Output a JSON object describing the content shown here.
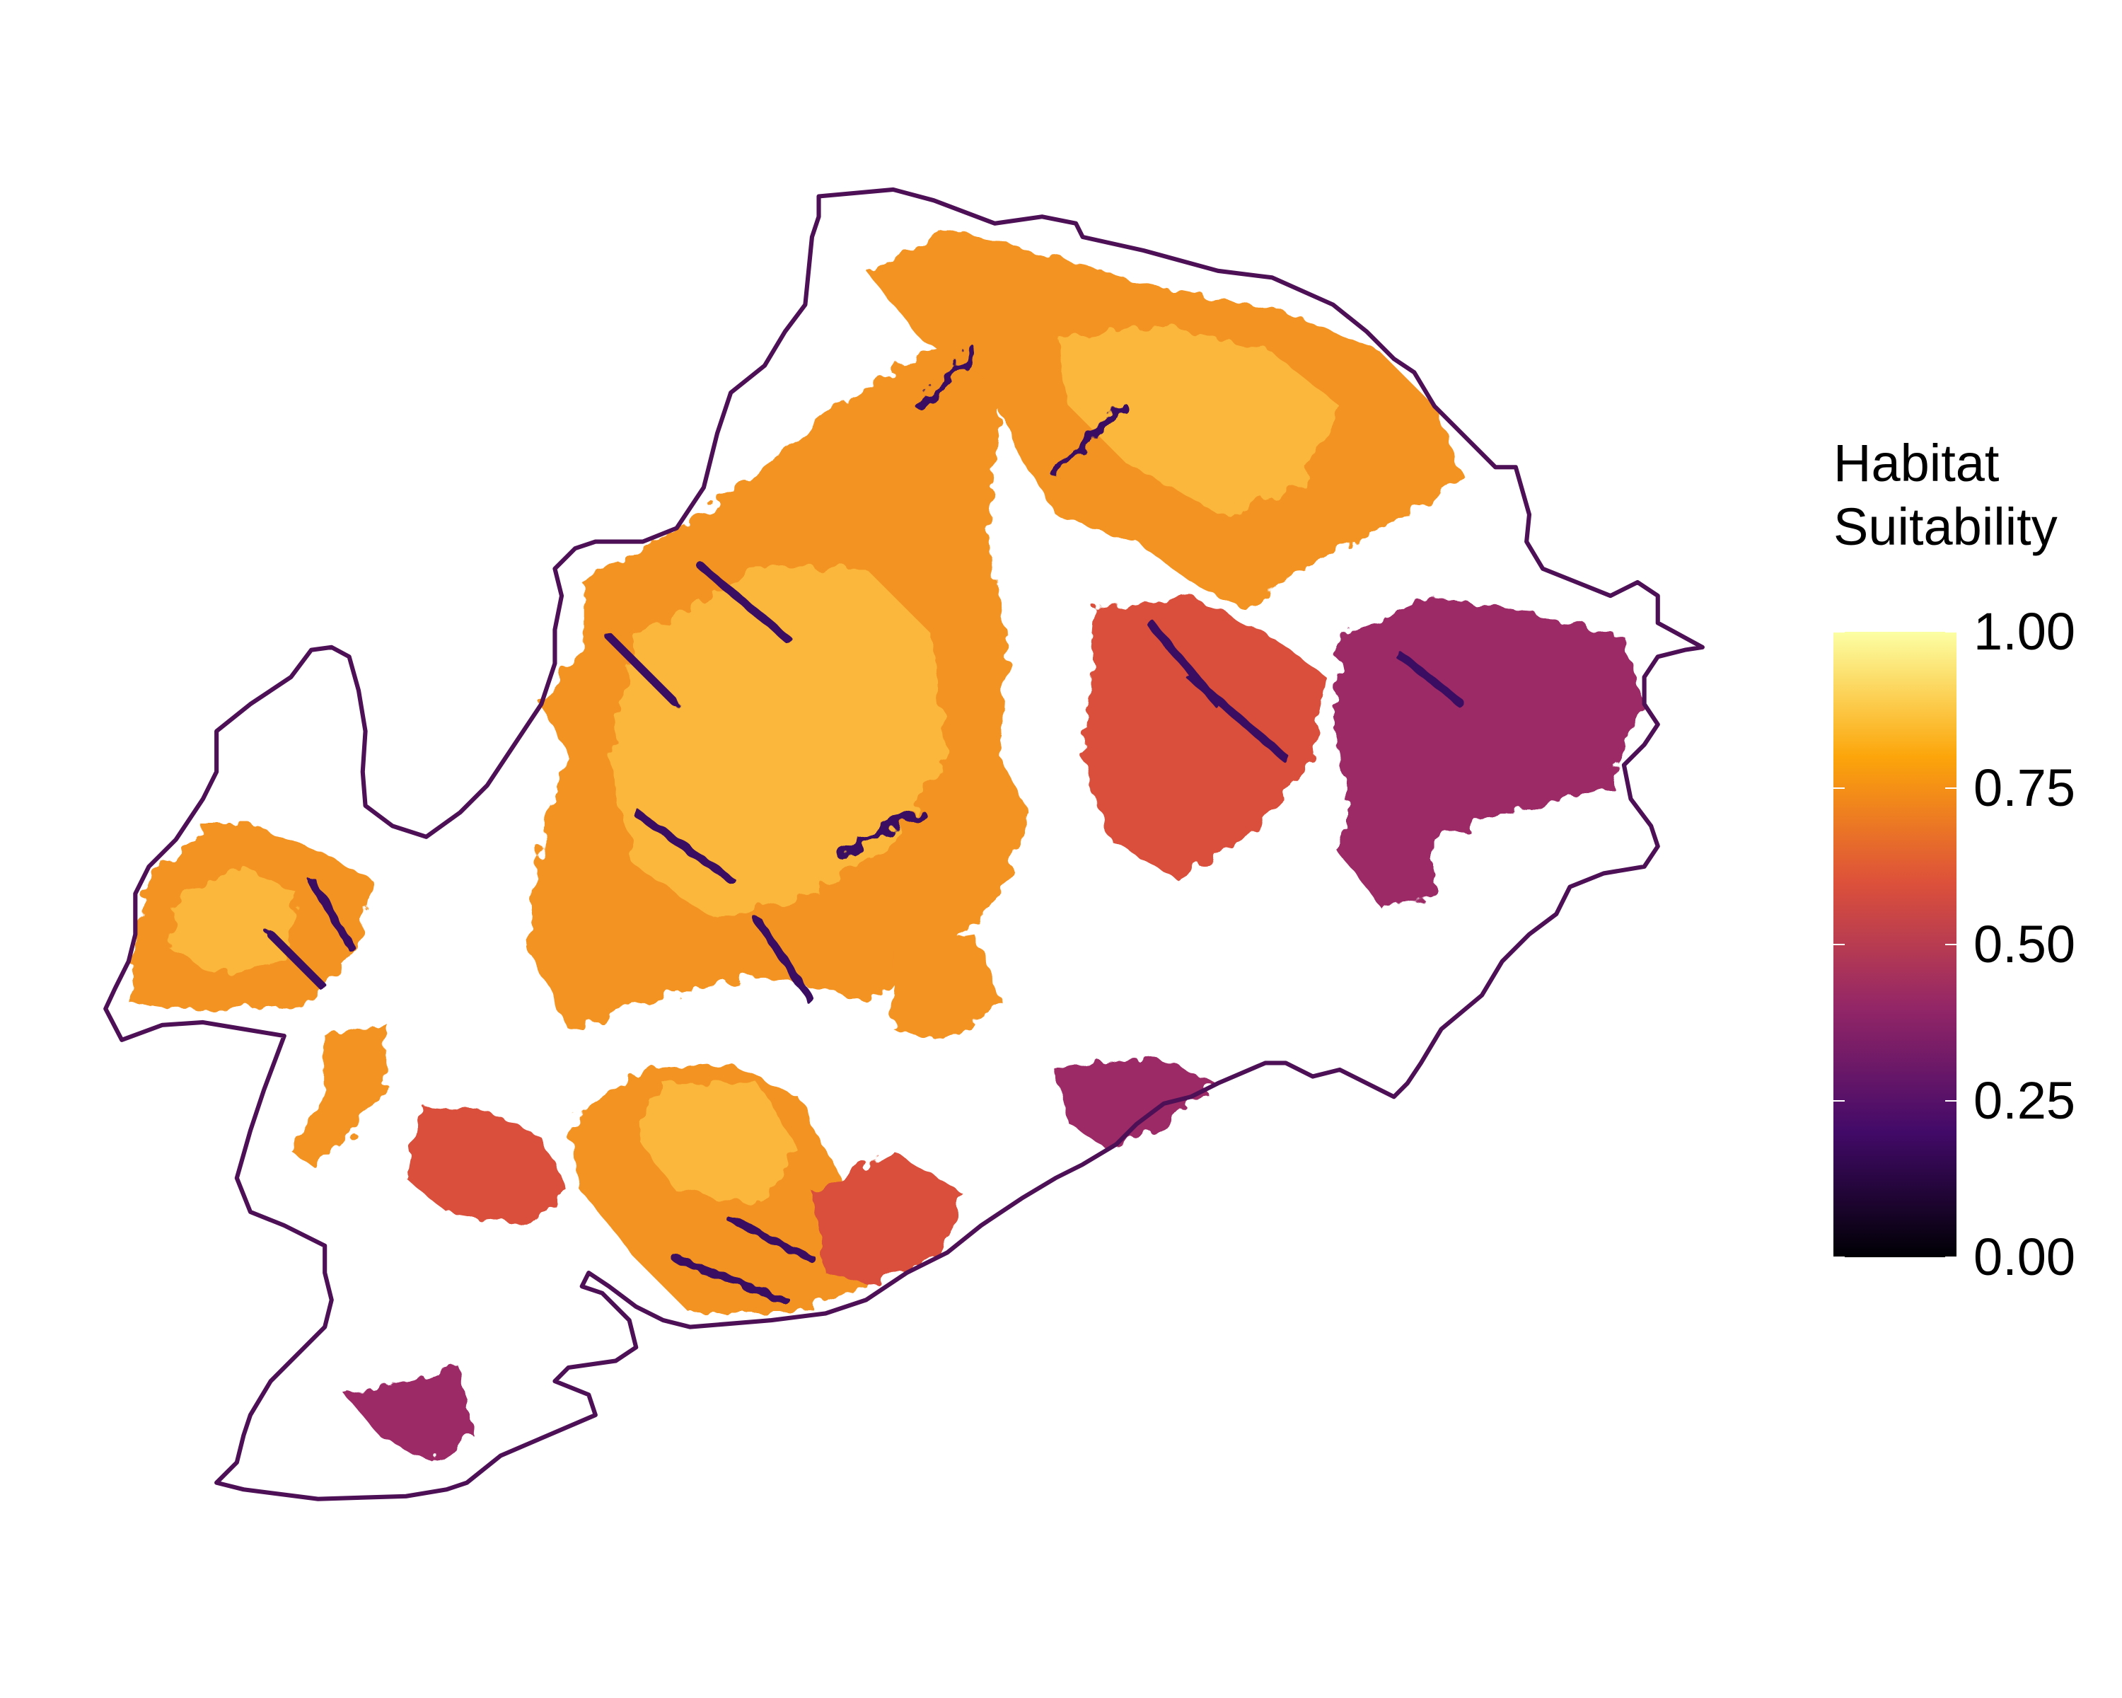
{
  "chart_data": {
    "type": "heatmap",
    "title": "",
    "legend": {
      "title_lines": [
        "Habitat",
        "Suitability"
      ],
      "ticks": [
        0.0,
        0.25,
        0.5,
        0.75,
        1.0
      ],
      "tick_labels": [
        "0.00",
        "0.25",
        "0.50",
        "0.75",
        "1.00"
      ],
      "range": [
        0,
        1
      ],
      "placement": "right",
      "colorscale": "inferno",
      "colors": [
        "#000004",
        "#420a68",
        "#932667",
        "#dd513a",
        "#fca50a",
        "#fcffa4"
      ]
    },
    "boundary_color": "#4d0f55",
    "axes": "none",
    "grid": false
  }
}
